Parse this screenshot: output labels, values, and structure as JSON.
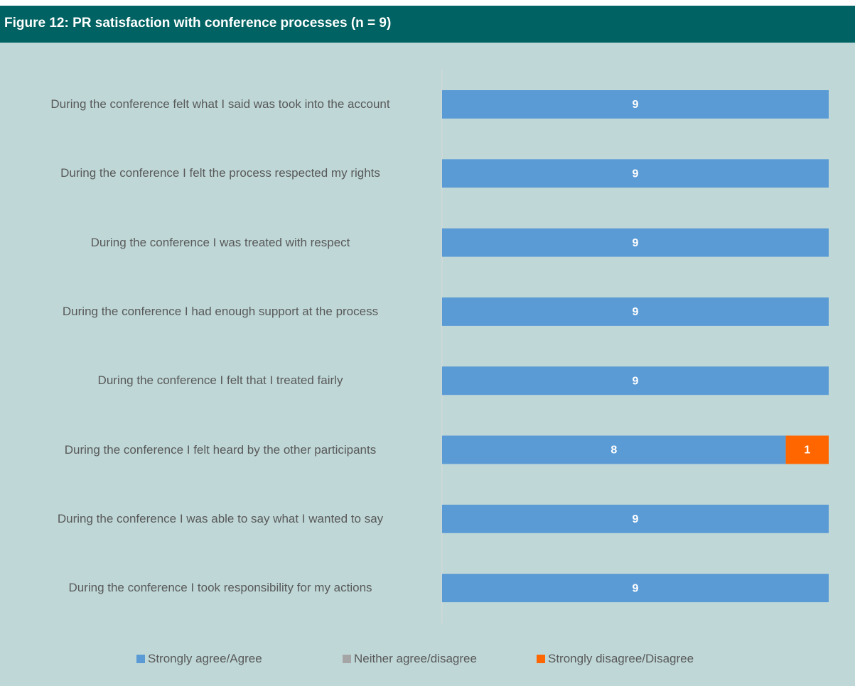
{
  "chart_data": {
    "type": "stacked_barh",
    "title": "Figure 12: PR satisfaction with conference processes (n = 9)",
    "categories": [
      "During the conference felt what I said was took into the account",
      "During the conference I felt the process respected my rights",
      "During the conference I was treated with respect",
      "During the conference I had enough support at the process",
      "During the conference I felt that I treated fairly",
      "During the conference I felt heard by the other participants",
      "During the conference I was able to say what I wanted to say",
      "During the conference I took responsibility for my actions"
    ],
    "series": [
      {
        "name": "Strongly agree/Agree",
        "color": "#5b9bd5",
        "values": [
          9,
          9,
          9,
          9,
          9,
          8,
          9,
          9
        ]
      },
      {
        "name": "Neither agree/disagree",
        "color": "#a5a5a5",
        "values": [
          0,
          0,
          0,
          0,
          0,
          0,
          0,
          0
        ]
      },
      {
        "name": "Strongly disagree/Disagree",
        "color": "#ff6600",
        "values": [
          0,
          0,
          0,
          0,
          0,
          1,
          0,
          0
        ]
      }
    ],
    "xlim": [
      0,
      9
    ],
    "legend": "bottom"
  }
}
